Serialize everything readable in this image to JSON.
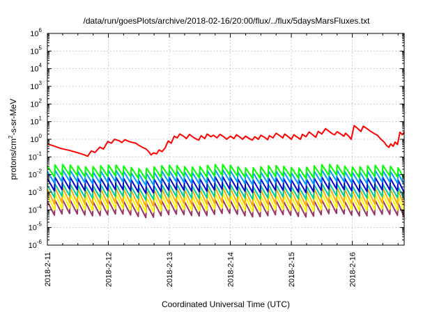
{
  "chart_data": {
    "type": "line",
    "title": "/data/run/goesPlots/archive/2018-02-16/20:00/flux/../flux/5daysMarsFluxes.txt",
    "xlabel": "Coordinated Universal Time (UTC)",
    "ylabel": "protons/cm2-s-sr-MeV",
    "yscale": "log",
    "ylim": [
      -6,
      6
    ],
    "y_tick_exponents": [
      -6,
      -5,
      -4,
      -3,
      -2,
      -1,
      0,
      1,
      2,
      3,
      4,
      5,
      6
    ],
    "y_tick_base": "10",
    "x_range_days": [
      0,
      5.85
    ],
    "x_tick_labels": [
      "2018-2-11",
      "2018-2-12",
      "2018-2-13",
      "2018-2-14",
      "2018-2-15",
      "2018-2-16"
    ],
    "grid": true,
    "legend": "none",
    "series": [
      {
        "color": "#ff0000",
        "points": [
          [
            0.0,
            0.55
          ],
          [
            0.12,
            0.4
          ],
          [
            0.22,
            0.3
          ],
          [
            0.35,
            0.24
          ],
          [
            0.48,
            0.18
          ],
          [
            0.58,
            0.14
          ],
          [
            0.66,
            0.11
          ],
          [
            0.72,
            0.22
          ],
          [
            0.78,
            0.18
          ],
          [
            0.86,
            0.36
          ],
          [
            0.92,
            0.28
          ],
          [
            0.99,
            0.75
          ],
          [
            1.05,
            0.6
          ],
          [
            1.1,
            1.0
          ],
          [
            1.18,
            0.82
          ],
          [
            1.22,
            0.65
          ],
          [
            1.27,
            0.95
          ],
          [
            1.35,
            0.72
          ],
          [
            1.45,
            0.6
          ],
          [
            1.5,
            0.45
          ],
          [
            1.56,
            0.35
          ],
          [
            1.62,
            0.28
          ],
          [
            1.66,
            0.2
          ],
          [
            1.7,
            0.13
          ],
          [
            1.74,
            0.17
          ],
          [
            1.79,
            0.15
          ],
          [
            1.83,
            0.25
          ],
          [
            1.88,
            0.2
          ],
          [
            1.93,
            0.32
          ],
          [
            1.98,
            0.8
          ],
          [
            2.03,
            0.6
          ],
          [
            2.08,
            1.5
          ],
          [
            2.13,
            1.2
          ],
          [
            2.17,
            2.0
          ],
          [
            2.23,
            1.5
          ],
          [
            2.28,
            1.1
          ],
          [
            2.33,
            1.9
          ],
          [
            2.39,
            1.3
          ],
          [
            2.45,
            1.0
          ],
          [
            2.48,
            0.9
          ],
          [
            2.52,
            1.6
          ],
          [
            2.58,
            1.1
          ],
          [
            2.62,
            2.0
          ],
          [
            2.68,
            1.4
          ],
          [
            2.72,
            1.7
          ],
          [
            2.78,
            1.2
          ],
          [
            2.83,
            1.9
          ],
          [
            2.89,
            1.4
          ],
          [
            2.94,
            1.0
          ],
          [
            3.0,
            1.5
          ],
          [
            3.06,
            1.1
          ],
          [
            3.1,
            1.8
          ],
          [
            3.16,
            1.3
          ],
          [
            3.2,
            1.0
          ],
          [
            3.25,
            1.5
          ],
          [
            3.31,
            1.1
          ],
          [
            3.36,
            0.9
          ],
          [
            3.4,
            1.4
          ],
          [
            3.46,
            1.0
          ],
          [
            3.5,
            1.7
          ],
          [
            3.56,
            1.3
          ],
          [
            3.61,
            0.95
          ],
          [
            3.64,
            1.6
          ],
          [
            3.7,
            1.2
          ],
          [
            3.75,
            2.2
          ],
          [
            3.81,
            1.6
          ],
          [
            3.86,
            1.2
          ],
          [
            3.89,
            2.0
          ],
          [
            3.95,
            1.4
          ],
          [
            4.0,
            1.0
          ],
          [
            4.04,
            1.8
          ],
          [
            4.1,
            1.3
          ],
          [
            4.15,
            1.0
          ],
          [
            4.18,
            1.9
          ],
          [
            4.24,
            1.4
          ],
          [
            4.29,
            2.6
          ],
          [
            4.35,
            1.8
          ],
          [
            4.4,
            1.3
          ],
          [
            4.44,
            2.8
          ],
          [
            4.5,
            2.0
          ],
          [
            4.56,
            4.0
          ],
          [
            4.62,
            2.8
          ],
          [
            4.68,
            2.0
          ],
          [
            4.71,
            1.8
          ],
          [
            4.75,
            2.7
          ],
          [
            4.81,
            2.0
          ],
          [
            4.86,
            1.5
          ],
          [
            4.89,
            2.2
          ],
          [
            4.94,
            1.5
          ],
          [
            4.98,
            1.0
          ],
          [
            5.03,
            6.0
          ],
          [
            5.09,
            4.0
          ],
          [
            5.14,
            2.8
          ],
          [
            5.18,
            5.5
          ],
          [
            5.24,
            4.0
          ],
          [
            5.29,
            3.0
          ],
          [
            5.35,
            2.2
          ],
          [
            5.41,
            1.7
          ],
          [
            5.47,
            1.0
          ],
          [
            5.52,
            0.7
          ],
          [
            5.56,
            0.45
          ],
          [
            5.6,
            0.35
          ],
          [
            5.63,
            0.55
          ],
          [
            5.67,
            0.4
          ],
          [
            5.7,
            0.7
          ],
          [
            5.74,
            0.5
          ],
          [
            5.78,
            2.5
          ],
          [
            5.82,
            1.8
          ],
          [
            5.85,
            2.6
          ]
        ]
      },
      {
        "color": "#00ff00",
        "sawtooth": {
          "peak": 0.03,
          "drop": 4.0,
          "period": 0.125
        }
      },
      {
        "color": "#0099ff",
        "sawtooth": {
          "peak": 0.015,
          "drop": 4.5,
          "period": 0.125
        }
      },
      {
        "color": "#0000cc",
        "sawtooth": {
          "peak": 0.006,
          "drop": 5.0,
          "period": 0.125
        }
      },
      {
        "color": "#00cc99",
        "sawtooth": {
          "peak": 0.0025,
          "drop": 5.0,
          "period": 0.125
        }
      },
      {
        "color": "#ffaa00",
        "sawtooth": {
          "peak": 0.0015,
          "drop": 7.0,
          "period": 0.125
        }
      },
      {
        "color": "#ffff00",
        "sawtooth": {
          "peak": 0.0007,
          "drop": 7.0,
          "period": 0.125
        }
      },
      {
        "color": "#993366",
        "sawtooth": {
          "peak": 0.0003,
          "drop": 6.0,
          "period": 0.125
        }
      }
    ]
  }
}
